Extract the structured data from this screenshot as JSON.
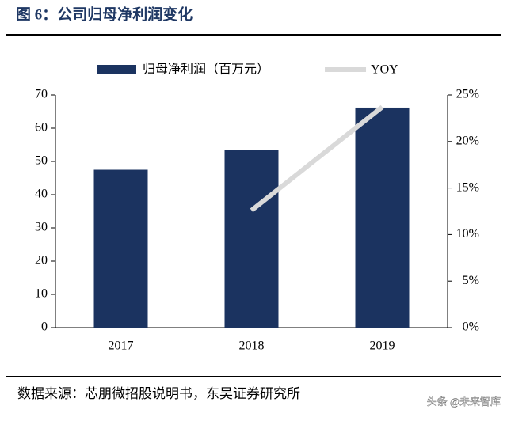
{
  "chart_data": {
    "type": "bar",
    "title": "图 6：公司归母净利润变化",
    "categories": [
      "2017",
      "2018",
      "2019"
    ],
    "series": [
      {
        "name": "归母净利润（百万元）",
        "type": "bar",
        "color": "#1b3360",
        "values": [
          47.5,
          53.5,
          66.2
        ]
      },
      {
        "name": "YOY",
        "type": "line",
        "axis": "y2",
        "color": "#d9d9d9",
        "values": [
          null,
          12.6,
          23.7
        ]
      }
    ],
    "ylim": [
      0,
      70
    ],
    "yticks": [
      0,
      10,
      20,
      30,
      40,
      50,
      60,
      70
    ],
    "y2lim": [
      0,
      25
    ],
    "y2ticks": [
      {
        "value": 0,
        "label": "0%"
      },
      {
        "value": 5,
        "label": "5%"
      },
      {
        "value": 10,
        "label": "10%"
      },
      {
        "value": 15,
        "label": "15%"
      },
      {
        "value": 20,
        "label": "20%"
      },
      {
        "value": 25,
        "label": "25%"
      }
    ],
    "legend": "top",
    "source": "数据来源：芯朋微招股说明书，东吴证券研究所",
    "watermark": "头条 @未来智库"
  }
}
